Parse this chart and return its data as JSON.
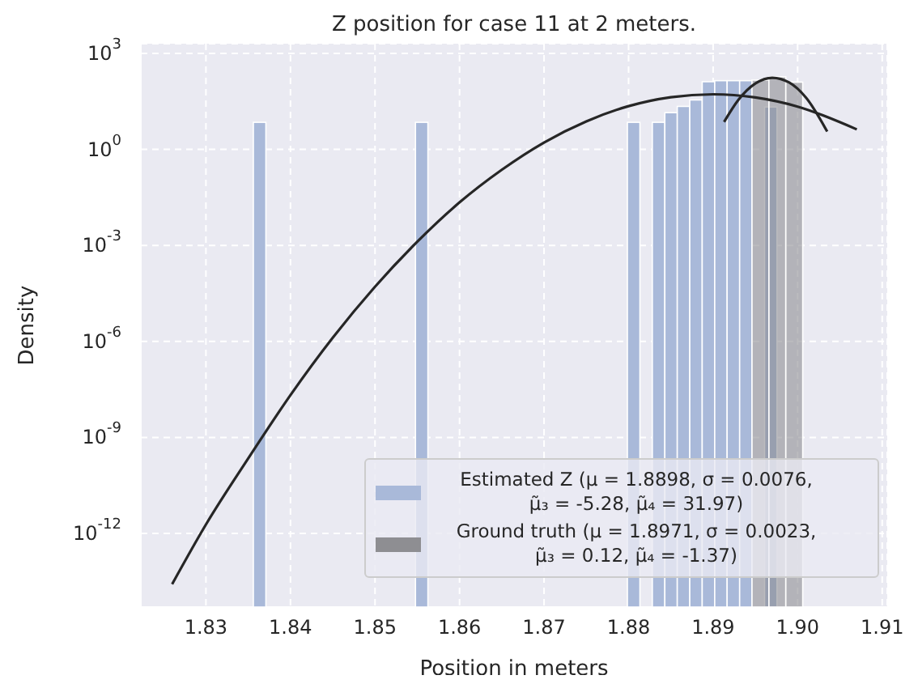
{
  "chart_data": {
    "type": "histogram",
    "title": "Z position for case 11 at 2 meters.",
    "xlabel": "Position in meters",
    "ylabel": "Density",
    "log": "y",
    "grid": true,
    "legend": "bottom right",
    "xlim": [
      1.8223,
      1.9106
    ],
    "xticks": [
      1.83,
      1.84,
      1.85,
      1.86,
      1.87,
      1.88,
      1.89,
      {
        "value": 1.9,
        "label": "1.90"
      },
      1.91
    ],
    "ylim": [
      5e-15,
      2000
    ],
    "yticks": [
      {
        "value": 1e-12,
        "label": "10$^{-12}$"
      },
      {
        "value": 1e-09,
        "label": "10$^{-9}$"
      },
      {
        "value": 1e-06,
        "label": "10$^{-6}$"
      },
      {
        "value": 0.001,
        "label": "10$^{-3}$"
      },
      {
        "value": 1,
        "label": "10$^{0}$"
      },
      {
        "value": 1000,
        "label": "10$^{3}$"
      }
    ],
    "series": [
      {
        "name": "Estimated Z (μ = 1.8898, σ = 0.0076, μ̃₃ = -5.28, μ̃₄ = 31.97)",
        "color": "#a9b9d9",
        "bins": [
          1.83561,
          1.83709,
          1.83856,
          1.84004,
          1.84151,
          1.84299,
          1.84446,
          1.84594,
          1.84741,
          1.84889,
          1.85036,
          1.85184,
          1.85331,
          1.85479,
          1.85626,
          1.85774,
          1.85921,
          1.86069,
          1.86216,
          1.86364,
          1.86511,
          1.86659,
          1.86806,
          1.86954,
          1.87101,
          1.87249,
          1.87396,
          1.87544,
          1.87691,
          1.87839,
          1.87986,
          1.88134,
          1.88281,
          1.88429,
          1.88576,
          1.88724,
          1.88871,
          1.89019,
          1.89166,
          1.89314,
          1.89461,
          1.89609,
          1.89756
        ],
        "values": [
          7,
          null,
          null,
          null,
          null,
          null,
          null,
          null,
          null,
          null,
          null,
          null,
          null,
          7,
          null,
          null,
          null,
          null,
          null,
          null,
          null,
          null,
          null,
          null,
          null,
          null,
          null,
          null,
          null,
          null,
          7,
          null,
          7,
          14,
          22,
          35,
          130,
          140,
          140,
          140,
          null,
          21
        ]
      },
      {
        "name": "Ground truth (μ = 1.8971, σ = 0.0023, μ̃₃ = 0.12, μ̃₄ = -1.37)",
        "color": "#8e8e92",
        "bins": [
          1.8946,
          1.8966,
          1.8986,
          1.9006
        ],
        "values": [
          146,
          185,
          126
        ]
      },
      {
        "type": "line",
        "color": "#262626",
        "x": [
          1.826,
          1.83,
          1.835,
          1.84,
          1.845,
          1.85,
          1.855,
          1.86,
          1.865,
          1.87,
          1.875,
          1.88,
          1.885,
          1.89,
          1.895,
          1.9,
          1.907
        ],
        "values": [
          2.6e-14,
          1.9e-12,
          2.2e-10,
          2.1e-08,
          1.3e-06,
          5.1e-05,
          0.0013,
          0.022,
          0.23,
          1.64,
          7.5,
          22.4,
          42.6,
          52.5,
          41.9,
          21.7,
          4.2
        ]
      },
      {
        "type": "line",
        "color": "#262626",
        "x": [
          1.8913,
          1.893,
          1.895,
          1.897,
          1.899,
          1.901,
          1.9035
        ],
        "values": [
          7.2,
          35.4,
          114,
          173,
          123,
          41,
          3.6
        ]
      }
    ]
  }
}
